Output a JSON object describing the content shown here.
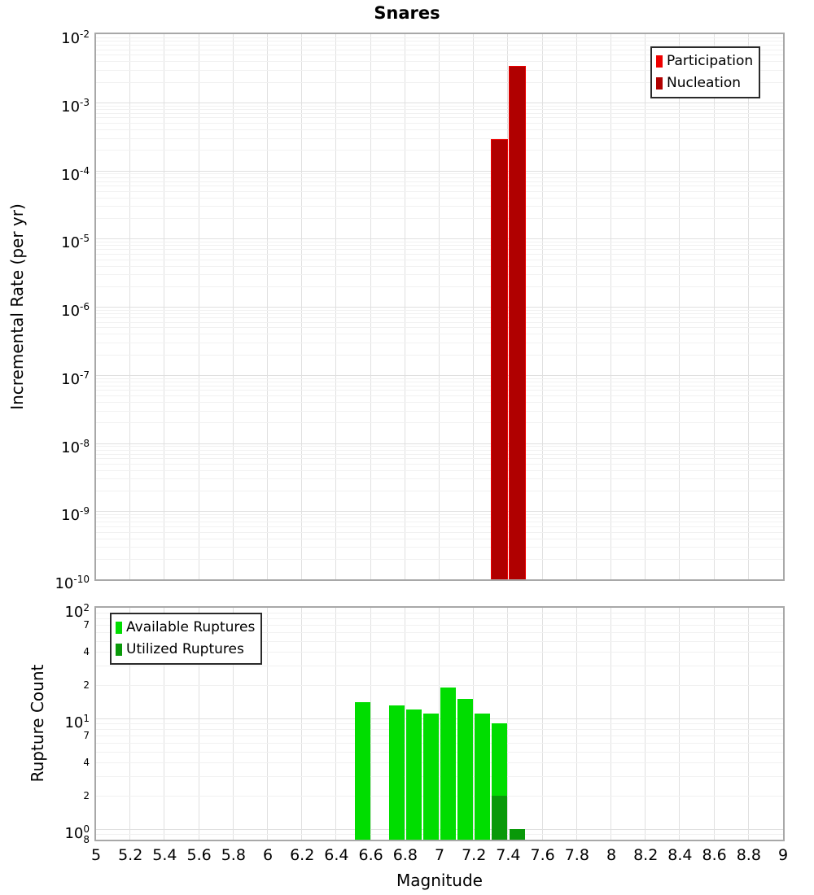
{
  "title": "Snares",
  "x_axis": {
    "label": "Magnitude",
    "range": [
      5,
      9
    ],
    "tick_labels": [
      "5",
      "5.2",
      "5.4",
      "5.6",
      "5.8",
      "6",
      "6.2",
      "6.4",
      "6.6",
      "6.8",
      "7",
      "7.2",
      "7.4",
      "7.6",
      "7.8",
      "8",
      "8.2",
      "8.4",
      "8.6",
      "8.8",
      "9"
    ]
  },
  "colors": {
    "participation": "#ee0000",
    "nucleation": "#b00000",
    "available": "#00dd00",
    "utilized": "#099909",
    "grid_major": "#e0e0e0",
    "grid_minor": "#f1f1f1",
    "panel_border": "#a8a8a8",
    "legend_border": "#2a2a2a"
  },
  "chart_data": [
    {
      "id": "incremental-rate",
      "type": "bar",
      "title": "Snares",
      "xlabel": "Magnitude",
      "ylabel": "Incremental Rate (per yr)",
      "y_scale": "log",
      "ylim": [
        1e-10,
        0.01
      ],
      "xlim": [
        5,
        9
      ],
      "grid": true,
      "legend_position": "top-right",
      "legend": [
        {
          "label": "Participation",
          "color": "#ee0000"
        },
        {
          "label": "Nucleation",
          "color": "#b00000"
        }
      ],
      "bar_width": 0.09,
      "categories": [
        7.35,
        7.45
      ],
      "series": [
        {
          "name": "Participation",
          "color": "#ee0000",
          "values": [
            0.00028,
            0.0033
          ]
        },
        {
          "name": "Nucleation",
          "color": "#b00000",
          "values": [
            0.00028,
            0.0033
          ]
        }
      ]
    },
    {
      "id": "rupture-count",
      "type": "bar",
      "title": "",
      "xlabel": "Magnitude",
      "ylabel": "Rupture Count",
      "y_scale": "log",
      "ylim": [
        0.8,
        100
      ],
      "xlim": [
        5,
        9
      ],
      "grid": true,
      "legend_position": "top-left",
      "legend": [
        {
          "label": "Available Ruptures",
          "color": "#00dd00"
        },
        {
          "label": "Utilized Ruptures",
          "color": "#099909"
        }
      ],
      "minor_tick_labels": [
        {
          "value": 70,
          "label": "7"
        },
        {
          "value": 40,
          "label": "4"
        },
        {
          "value": 20,
          "label": "2"
        },
        {
          "value": 7,
          "label": "7"
        },
        {
          "value": 4,
          "label": "4"
        },
        {
          "value": 2,
          "label": "2"
        },
        {
          "value": 0.8,
          "label": "8"
        }
      ],
      "bar_width": 0.09,
      "categories": [
        6.55,
        6.75,
        6.85,
        6.95,
        7.05,
        7.15,
        7.25,
        7.35,
        7.45
      ],
      "series": [
        {
          "name": "Available Ruptures",
          "color": "#00dd00",
          "values": [
            14,
            13,
            12,
            11,
            19,
            15,
            11,
            9,
            1
          ]
        },
        {
          "name": "Utilized Ruptures",
          "color": "#099909",
          "values": [
            0,
            0,
            0,
            0,
            0,
            0,
            0,
            2,
            1
          ]
        }
      ]
    }
  ]
}
